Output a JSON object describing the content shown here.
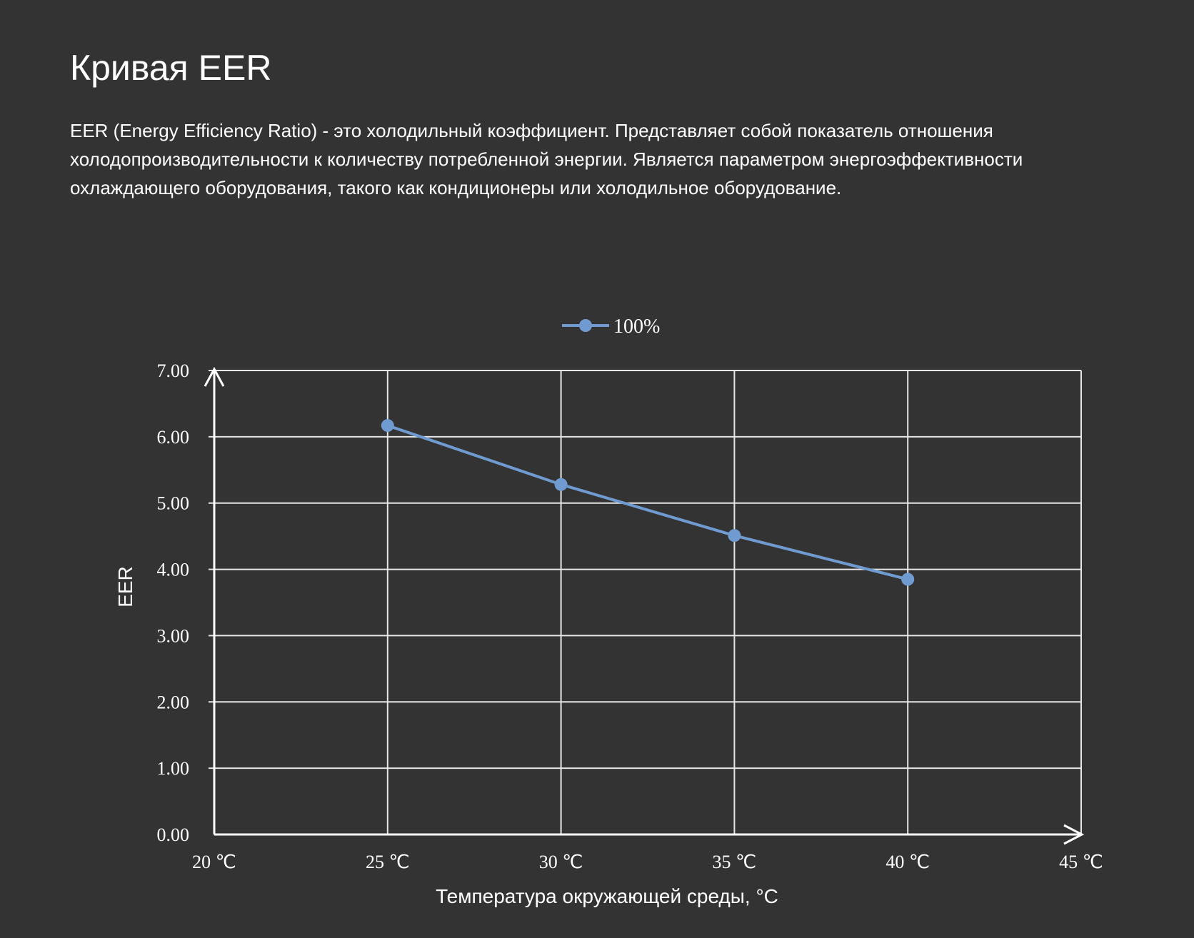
{
  "page": {
    "title": "Кривая EER",
    "description": "EER (Energy Efficiency Ratio) - это холодильный коэффициент. Представляет собой показатель отношения холодопроизводительности к количеству потребленной энергии. Является параметром энергоэффективности охлаждающего оборудования, такого как кондиционеры или холодильное оборудование."
  },
  "colors": {
    "background": "#333333",
    "text": "#ffffff",
    "grid": "#e6e6e6",
    "series": "#6f9bd1"
  },
  "chart_data": {
    "type": "line",
    "title": "",
    "xlabel": "Температура окружающей среды, °C",
    "ylabel": "EER",
    "x_categories": [
      "20 ℃",
      "25 ℃",
      "30 ℃",
      "35 ℃",
      "40 ℃",
      "45 ℃"
    ],
    "y_ticks": [
      "0.00",
      "1.00",
      "2.00",
      "3.00",
      "4.00",
      "5.00",
      "6.00",
      "7.00"
    ],
    "ylim": [
      0,
      7
    ],
    "grid": true,
    "legend_position": "top-center",
    "series": [
      {
        "name": "100%",
        "x": [
          25,
          30,
          35,
          40
        ],
        "values": [
          6.17,
          5.28,
          4.51,
          3.85
        ]
      }
    ]
  }
}
